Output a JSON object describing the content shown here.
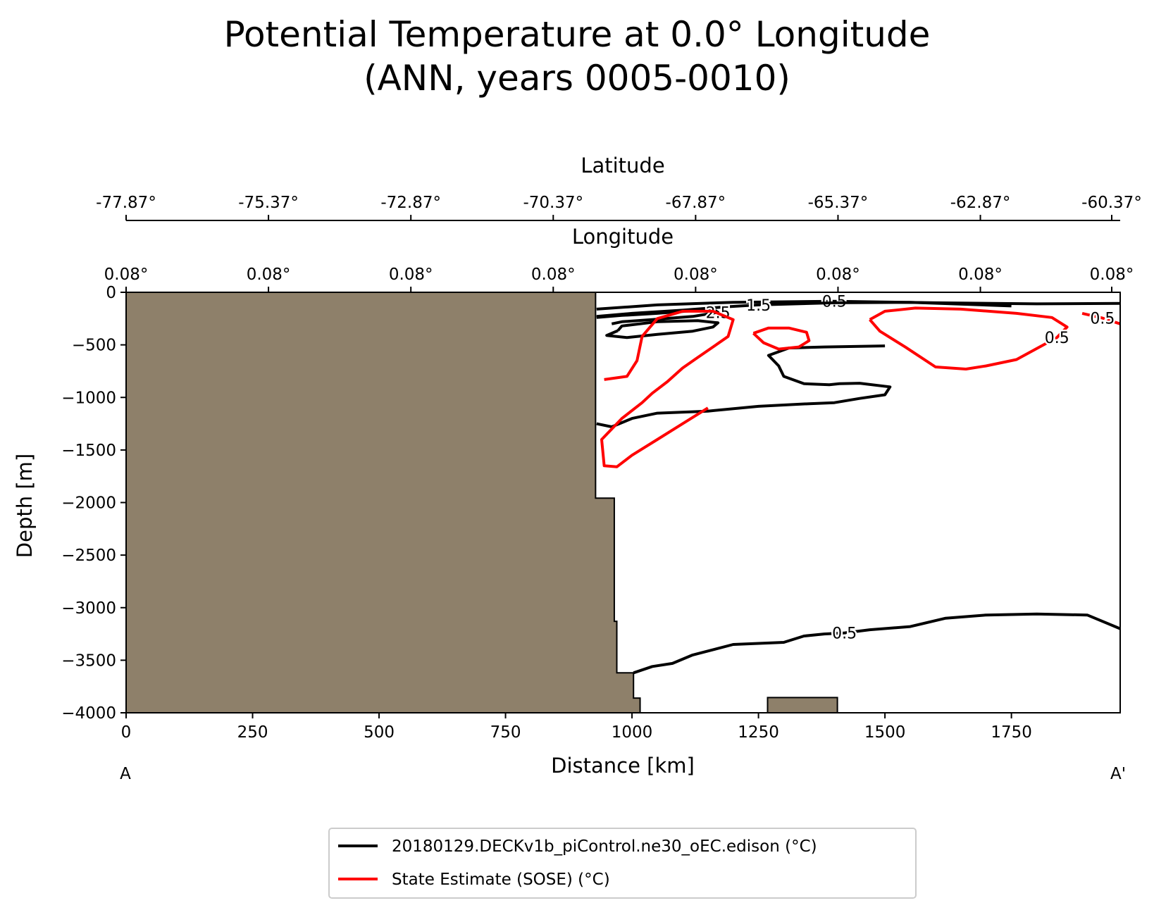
{
  "chart_data": {
    "type": "contour",
    "title": "Potential Temperature at 0.0° Longitude",
    "subtitle": "(ANN, years 0005-0010)",
    "xlabel": "Distance [km]",
    "ylabel": "Depth [m]",
    "top_axes": [
      {
        "label": "Latitude",
        "ticks": [
          "-77.87°",
          "-75.37°",
          "-72.87°",
          "-70.37°",
          "-67.87°",
          "-65.37°",
          "-62.87°",
          "-60.37°"
        ]
      },
      {
        "label": "Longitude",
        "ticks": [
          "0.08°",
          "0.08°",
          "0.08°",
          "0.08°",
          "0.08°",
          "0.08°",
          "0.08°",
          "0.08°"
        ]
      }
    ],
    "xlim": [
      0,
      1965
    ],
    "ylim": [
      -4000,
      0
    ],
    "xticks": [
      0,
      250,
      500,
      750,
      1000,
      1250,
      1500,
      1750
    ],
    "xtick_labels": [
      "0",
      "250",
      "500",
      "750",
      "1000",
      "1250",
      "1500",
      "1750"
    ],
    "yticks": [
      0,
      -500,
      -1000,
      -1500,
      -2000,
      -2500,
      -3000,
      -3500,
      -4000
    ],
    "ytick_labels": [
      "0",
      "−500",
      "−1000",
      "−1500",
      "−2000",
      "−2500",
      "−3000",
      "−3500",
      "−4000"
    ],
    "section_endpoints": {
      "start": "A",
      "end": "A'"
    },
    "bathymetry": {
      "color": "#8e806a",
      "outline": [
        [
          0,
          0
        ],
        [
          928,
          0
        ],
        [
          928,
          -1958
        ],
        [
          965,
          -1958
        ],
        [
          965,
          -3130
        ],
        [
          970,
          -3130
        ],
        [
          970,
          -3620
        ],
        [
          1003,
          -3620
        ],
        [
          1003,
          -3860
        ],
        [
          1016,
          -3860
        ],
        [
          1016,
          -4000
        ],
        [
          0,
          -4000
        ]
      ],
      "seamount": [
        [
          1268,
          -4000
        ],
        [
          1268,
          -3855
        ],
        [
          1406,
          -3855
        ],
        [
          1406,
          -4000
        ]
      ]
    },
    "series": [
      {
        "name": "20180129.DECKv1b_piControl.ne30_oEC.edison (°C)",
        "color": "#000000",
        "contours": [
          {
            "level": "0.5",
            "points": [
              [
                930,
                -160
              ],
              [
                1050,
                -120
              ],
              [
                1200,
                -95
              ],
              [
                1400,
                -85
              ],
              [
                1600,
                -100
              ],
              [
                1800,
                -110
              ],
              [
                1965,
                -105
              ]
            ]
          },
          {
            "level": "1.5",
            "points": [
              [
                930,
                -230
              ],
              [
                1000,
                -200
              ],
              [
                1100,
                -170
              ],
              [
                1180,
                -140
              ],
              [
                1250,
                -120
              ],
              [
                1400,
                -100
              ],
              [
                1550,
                -95
              ],
              [
                1750,
                -130
              ]
            ]
          },
          {
            "level": "2.5",
            "points": [
              [
                930,
                -240
              ],
              [
                980,
                -220
              ],
              [
                1050,
                -200
              ],
              [
                1120,
                -175
              ],
              [
                1160,
                -160
              ],
              [
                1170,
                -190
              ],
              [
                1120,
                -230
              ],
              [
                1040,
                -260
              ],
              [
                980,
                -280
              ],
              [
                960,
                -300
              ]
            ]
          },
          {
            "level": "",
            "points": [
              [
                972,
                -365
              ],
              [
                950,
                -410
              ],
              [
                990,
                -430
              ],
              [
                1050,
                -400
              ],
              [
                1120,
                -370
              ],
              [
                1160,
                -330
              ],
              [
                1170,
                -290
              ],
              [
                1130,
                -270
              ],
              [
                1050,
                -280
              ],
              [
                980,
                -320
              ],
              [
                972,
                -365
              ]
            ]
          },
          {
            "level": "",
            "points": [
              [
                930,
                -1250
              ],
              [
                960,
                -1280
              ],
              [
                1000,
                -1200
              ],
              [
                1050,
                -1150
              ],
              [
                1150,
                -1130
              ],
              [
                1250,
                -1085
              ],
              [
                1350,
                -1060
              ],
              [
                1400,
                -1050
              ],
              [
                1450,
                -1010
              ],
              [
                1500,
                -975
              ],
              [
                1510,
                -900
              ],
              [
                1450,
                -865
              ],
              [
                1410,
                -870
              ],
              [
                1390,
                -880
              ],
              [
                1340,
                -870
              ],
              [
                1300,
                -800
              ],
              [
                1290,
                -700
              ],
              [
                1270,
                -600
              ],
              [
                1310,
                -530
              ],
              [
                1380,
                -520
              ],
              [
                1500,
                -510
              ]
            ]
          },
          {
            "level": "0.5",
            "points": [
              [
                1003,
                -3620
              ],
              [
                1040,
                -3560
              ],
              [
                1080,
                -3530
              ],
              [
                1120,
                -3450
              ],
              [
                1200,
                -3350
              ],
              [
                1300,
                -3330
              ],
              [
                1340,
                -3270
              ],
              [
                1380,
                -3250
              ],
              [
                1420,
                -3240
              ],
              [
                1470,
                -3210
              ],
              [
                1550,
                -3180
              ],
              [
                1620,
                -3100
              ],
              [
                1700,
                -3070
              ],
              [
                1800,
                -3060
              ],
              [
                1900,
                -3070
              ],
              [
                1965,
                -3200
              ]
            ]
          }
        ]
      },
      {
        "name": "State Estimate (SOSE) (°C)",
        "color": "#ff0000",
        "contours": [
          {
            "level": "",
            "points": [
              [
                945,
                -830
              ],
              [
                990,
                -800
              ],
              [
                1010,
                -650
              ],
              [
                1020,
                -420
              ],
              [
                1050,
                -250
              ],
              [
                1100,
                -180
              ],
              [
                1160,
                -180
              ],
              [
                1200,
                -260
              ],
              [
                1190,
                -420
              ],
              [
                1160,
                -520
              ],
              [
                1130,
                -620
              ],
              [
                1100,
                -720
              ],
              [
                1070,
                -850
              ],
              [
                1040,
                -960
              ],
              [
                1020,
                -1050
              ],
              [
                980,
                -1200
              ],
              [
                940,
                -1400
              ],
              [
                945,
                -1650
              ],
              [
                970,
                -1660
              ],
              [
                1000,
                -1550
              ],
              [
                1050,
                -1400
              ],
              [
                1100,
                -1250
              ],
              [
                1150,
                -1100
              ]
            ]
          },
          {
            "level": "",
            "points": [
              [
                1240,
                -390
              ],
              [
                1260,
                -480
              ],
              [
                1290,
                -540
              ],
              [
                1330,
                -520
              ],
              [
                1350,
                -460
              ],
              [
                1345,
                -380
              ],
              [
                1310,
                -340
              ],
              [
                1270,
                -340
              ],
              [
                1240,
                -390
              ]
            ]
          },
          {
            "level": "0.5",
            "points": [
              [
                1470,
                -260
              ],
              [
                1490,
                -370
              ],
              [
                1540,
                -520
              ],
              [
                1600,
                -710
              ],
              [
                1660,
                -730
              ],
              [
                1700,
                -700
              ],
              [
                1760,
                -640
              ],
              [
                1840,
                -430
              ],
              [
                1860,
                -330
              ],
              [
                1830,
                -240
              ],
              [
                1760,
                -200
              ],
              [
                1650,
                -160
              ],
              [
                1560,
                -150
              ],
              [
                1500,
                -180
              ],
              [
                1470,
                -260
              ]
            ]
          },
          {
            "level": "0.5",
            "points": [
              [
                1890,
                -200
              ],
              [
                1930,
                -245
              ],
              [
                1965,
                -300
              ]
            ]
          }
        ]
      }
    ],
    "legend": {
      "position": "bottom-center",
      "entries": [
        "20180129.DECKv1b_piControl.ne30_oEC.edison (°C)",
        "State Estimate (SOSE) (°C)"
      ]
    },
    "grid": false
  }
}
